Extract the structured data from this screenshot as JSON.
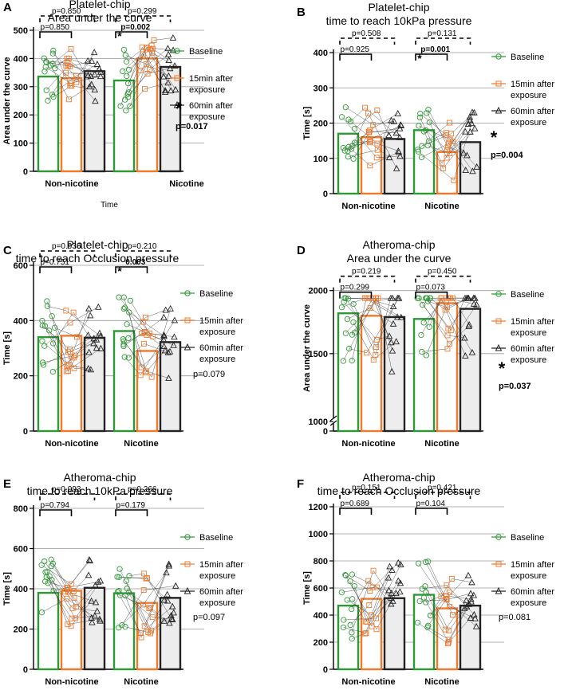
{
  "figure": {
    "legend_labels": [
      "Baseline",
      "15min after exposure",
      "60min after exposure"
    ],
    "colors": {
      "baseline": "#2e9a35",
      "m15": "#f07a2c",
      "m60": "#222222",
      "bar_fill_60": "#ededed",
      "grid": "#9a9a9a"
    }
  },
  "chart_data": [
    {
      "panel": "A",
      "type": "bar",
      "title": [
        "Platelet-chip",
        "Area under the curve"
      ],
      "ylabel": "Area under the curve",
      "xlabel": "Time",
      "categories": [
        "Non-nicotine",
        "Nicotine"
      ],
      "series": [
        {
          "name": "Baseline",
          "values": [
            336,
            322
          ]
        },
        {
          "name": "15min after exposure",
          "values": [
            330,
            400
          ]
        },
        {
          "name": "60min after exposure",
          "values": [
            355,
            370
          ]
        }
      ],
      "ylim": [
        0,
        500
      ],
      "yticks": [
        0,
        100,
        200,
        300,
        400,
        500
      ],
      "brackets": [
        {
          "group": 0,
          "level": 2,
          "style": "dashed",
          "text": "p=0.850",
          "bold": false,
          "star": false
        },
        {
          "group": 0,
          "level": 1,
          "style": "solid",
          "text": "p=0.850",
          "bold": false,
          "star": false
        },
        {
          "group": 1,
          "level": 2,
          "style": "dashed",
          "text": "p=0.299",
          "bold": false,
          "star": false
        },
        {
          "group": 1,
          "level": 1,
          "style": "solid",
          "text": "p=0.002",
          "bold": true,
          "star": true
        }
      ],
      "overall": {
        "text": "p=0.017",
        "star": true,
        "bold": true
      }
    },
    {
      "panel": "B",
      "type": "bar",
      "title": [
        "Platelet-chip",
        "time to reach 10kPa pressure"
      ],
      "ylabel": "Time [s]",
      "xlabel": "",
      "categories": [
        "Non-nicotine",
        "Nicotine"
      ],
      "series": [
        {
          "name": "Baseline",
          "values": [
            170,
            180
          ]
        },
        {
          "name": "15min after exposure",
          "values": [
            160,
            118
          ]
        },
        {
          "name": "60min after exposure",
          "values": [
            155,
            146
          ]
        }
      ],
      "ylim": [
        0,
        400
      ],
      "yticks": [
        0,
        100,
        200,
        300,
        400
      ],
      "brackets": [
        {
          "group": 0,
          "level": 2,
          "style": "dashed",
          "text": "p=0.508",
          "bold": false,
          "star": false
        },
        {
          "group": 0,
          "level": 1,
          "style": "solid",
          "text": "p=0.925",
          "bold": false,
          "star": false
        },
        {
          "group": 1,
          "level": 2,
          "style": "dashed",
          "text": "p=0.131",
          "bold": false,
          "star": false
        },
        {
          "group": 1,
          "level": 1,
          "style": "solid",
          "text": "p=0.001",
          "bold": true,
          "star": true
        }
      ],
      "overall": {
        "text": "p=0.004",
        "star": true,
        "bold": true
      }
    },
    {
      "panel": "C",
      "type": "bar",
      "title": [
        "Platelet-chip",
        "time to reach Occlusion pressure"
      ],
      "ylabel": "Time [s]",
      "xlabel": "",
      "categories": [
        "Non-nicotine",
        "Nicotine"
      ],
      "series": [
        {
          "name": "Baseline",
          "values": [
            340,
            362
          ]
        },
        {
          "name": "15min after exposure",
          "values": [
            345,
            290
          ]
        },
        {
          "name": "60min after exposure",
          "values": [
            338,
            322
          ]
        }
      ],
      "ylim": [
        0,
        700
      ],
      "yticks": [
        0,
        200,
        400,
        600
      ],
      "brackets": [
        {
          "group": 0,
          "level": 2,
          "style": "dashed",
          "text": "p=0.936",
          "bold": false,
          "star": false
        },
        {
          "group": 0,
          "level": 1,
          "style": "solid",
          "text": "p=0.751",
          "bold": false,
          "star": false
        },
        {
          "group": 1,
          "level": 2,
          "style": "dashed",
          "text": "p=0.210",
          "bold": false,
          "star": false
        },
        {
          "group": 1,
          "level": 1,
          "style": "solid",
          "text": "0.003",
          "bold": true,
          "star": true
        }
      ],
      "overall": {
        "text": "p=0.079",
        "star": false,
        "bold": false
      }
    },
    {
      "panel": "D",
      "type": "bar",
      "title": [
        "Atheroma-chip",
        "Area under the curve"
      ],
      "ylabel": "Area under the curve",
      "xlabel": "",
      "categories": [
        "Non-nicotine",
        "Nicotine"
      ],
      "series": [
        {
          "name": "Baseline",
          "values": [
            1820,
            1775
          ]
        },
        {
          "name": "15min after exposure",
          "values": [
            1800,
            1900
          ]
        },
        {
          "name": "60min after exposure",
          "values": [
            1790,
            1855
          ]
        }
      ],
      "ylim": [
        0,
        2200
      ],
      "yticks": [
        0,
        1000,
        1500,
        2000
      ],
      "axis_break": [
        0,
        1000
      ],
      "brackets": [
        {
          "group": 0,
          "level": 2,
          "style": "dashed",
          "text": "p=0.219",
          "bold": false,
          "star": false
        },
        {
          "group": 0,
          "level": 1,
          "style": "solid",
          "text": "p=0.299",
          "bold": false,
          "star": false
        },
        {
          "group": 1,
          "level": 2,
          "style": "dashed",
          "text": "p=0.450",
          "bold": false,
          "star": false
        },
        {
          "group": 1,
          "level": 1,
          "style": "solid",
          "text": "p=0.073",
          "bold": false,
          "star": false
        }
      ],
      "overall": {
        "text": "p=0.037",
        "star": true,
        "bold": true
      }
    },
    {
      "panel": "E",
      "type": "bar",
      "title": [
        "Atheroma-chip",
        "time to reach 10kPa pressure"
      ],
      "ylabel": "Time [s]",
      "xlabel": "",
      "categories": [
        "Non-nicotine",
        "Nicotine"
      ],
      "series": [
        {
          "name": "Baseline",
          "values": [
            380,
            378
          ]
        },
        {
          "name": "15min after exposure",
          "values": [
            390,
            330
          ]
        },
        {
          "name": "60min after exposure",
          "values": [
            405,
            355
          ]
        }
      ],
      "ylim": [
        0,
        800
      ],
      "yticks": [
        0,
        200,
        400,
        600,
        800
      ],
      "brackets": [
        {
          "group": 0,
          "level": 2,
          "style": "dashed",
          "text": "p=0.093",
          "bold": false,
          "star": false
        },
        {
          "group": 0,
          "level": 1,
          "style": "solid",
          "text": "p=0.794",
          "bold": false,
          "star": false
        },
        {
          "group": 1,
          "level": 2,
          "style": "dashed",
          "text": "p=0.266",
          "bold": false,
          "star": false
        },
        {
          "group": 1,
          "level": 1,
          "style": "solid",
          "text": "p=0.179",
          "bold": false,
          "star": false
        }
      ],
      "overall": {
        "text": "p=0.097",
        "star": false,
        "bold": false
      }
    },
    {
      "panel": "F",
      "type": "bar",
      "title": [
        "Atheroma-chip",
        "time to reach Occlusion pressure"
      ],
      "ylabel": "Time [s]",
      "xlabel": "",
      "categories": [
        "Non-nicotine",
        "Nicotine"
      ],
      "series": [
        {
          "name": "Baseline",
          "values": [
            470,
            550
          ]
        },
        {
          "name": "15min after exposure",
          "values": [
            520,
            450
          ]
        },
        {
          "name": "60min after exposure",
          "values": [
            525,
            470
          ]
        }
      ],
      "ylim": [
        0,
        1200
      ],
      "yticks": [
        0,
        200,
        400,
        600,
        800,
        1000,
        1200
      ],
      "brackets": [
        {
          "group": 0,
          "level": 2,
          "style": "dashed",
          "text": "p=0.151",
          "bold": false,
          "star": false
        },
        {
          "group": 0,
          "level": 1,
          "style": "solid",
          "text": "p=0.689",
          "bold": false,
          "star": false
        },
        {
          "group": 1,
          "level": 2,
          "style": "dashed",
          "text": "p=0.421",
          "bold": false,
          "star": false
        },
        {
          "group": 1,
          "level": 1,
          "style": "solid",
          "text": "p=0.104",
          "bold": false,
          "star": false
        }
      ],
      "overall": {
        "text": "p=0.081",
        "star": false,
        "bold": false
      }
    }
  ]
}
